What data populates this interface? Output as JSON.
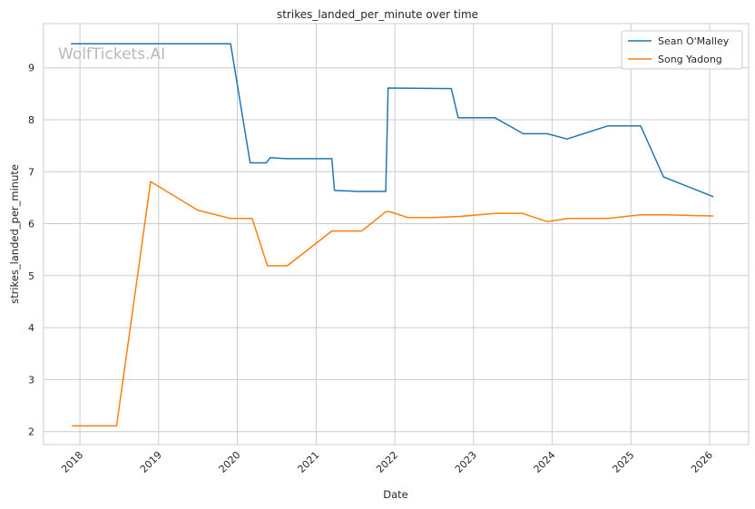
{
  "watermark": "WolfTickets.AI",
  "chart_data": {
    "type": "line",
    "title": "strikes_landed_per_minute over time",
    "xlabel": "Date",
    "ylabel": "strikes_landed_per_minute",
    "x_axis_type": "date",
    "xlim": [
      "2017-07-16",
      "2026-07-01"
    ],
    "ylim": [
      1.75,
      9.85
    ],
    "x_ticks": [
      "2018-01-01",
      "2019-01-01",
      "2020-01-01",
      "2021-01-01",
      "2022-01-01",
      "2023-01-01",
      "2024-01-01",
      "2025-01-01",
      "2026-01-01"
    ],
    "x_tick_labels": [
      "2018",
      "2019",
      "2020",
      "2021",
      "2022",
      "2023",
      "2024",
      "2025",
      "2026"
    ],
    "y_ticks": [
      2,
      3,
      4,
      5,
      6,
      7,
      8,
      9
    ],
    "grid": true,
    "legend_position": "top-right",
    "series": [
      {
        "name": "Sean O'Malley",
        "color": "#1f77b4",
        "points": [
          {
            "x": "2017-11-20",
            "y": 9.46
          },
          {
            "x": "2019-12-01",
            "y": 9.46
          },
          {
            "x": "2020-03-01",
            "y": 7.17
          },
          {
            "x": "2020-05-15",
            "y": 7.17
          },
          {
            "x": "2020-06-01",
            "y": 7.27
          },
          {
            "x": "2020-08-15",
            "y": 7.25
          },
          {
            "x": "2021-03-15",
            "y": 7.25
          },
          {
            "x": "2021-03-27",
            "y": 6.64
          },
          {
            "x": "2021-07-15",
            "y": 6.62
          },
          {
            "x": "2021-11-20",
            "y": 6.62
          },
          {
            "x": "2021-12-01",
            "y": 8.61
          },
          {
            "x": "2022-09-20",
            "y": 8.6
          },
          {
            "x": "2022-10-22",
            "y": 8.04
          },
          {
            "x": "2023-04-10",
            "y": 8.04
          },
          {
            "x": "2023-08-20",
            "y": 7.73
          },
          {
            "x": "2023-12-10",
            "y": 7.73
          },
          {
            "x": "2024-03-10",
            "y": 7.63
          },
          {
            "x": "2024-09-15",
            "y": 7.88
          },
          {
            "x": "2025-02-15",
            "y": 7.88
          },
          {
            "x": "2025-06-01",
            "y": 6.9
          },
          {
            "x": "2026-01-18",
            "y": 6.52
          }
        ]
      },
      {
        "name": "Song Yadong",
        "color": "#ff7f0e",
        "points": [
          {
            "x": "2017-11-25",
            "y": 2.11
          },
          {
            "x": "2018-06-20",
            "y": 2.11
          },
          {
            "x": "2018-11-25",
            "y": 6.81
          },
          {
            "x": "2019-07-01",
            "y": 6.26
          },
          {
            "x": "2019-12-01",
            "y": 6.1
          },
          {
            "x": "2020-03-10",
            "y": 6.1
          },
          {
            "x": "2020-05-20",
            "y": 5.19
          },
          {
            "x": "2020-08-20",
            "y": 5.19
          },
          {
            "x": "2021-03-15",
            "y": 5.86
          },
          {
            "x": "2021-08-01",
            "y": 5.86
          },
          {
            "x": "2021-11-20",
            "y": 6.23
          },
          {
            "x": "2021-12-10",
            "y": 6.23
          },
          {
            "x": "2022-03-01",
            "y": 6.12
          },
          {
            "x": "2022-07-01",
            "y": 6.12
          },
          {
            "x": "2022-11-01",
            "y": 6.14
          },
          {
            "x": "2023-04-15",
            "y": 6.2
          },
          {
            "x": "2023-08-15",
            "y": 6.2
          },
          {
            "x": "2023-12-10",
            "y": 6.04
          },
          {
            "x": "2024-03-15",
            "y": 6.1
          },
          {
            "x": "2024-09-15",
            "y": 6.1
          },
          {
            "x": "2025-02-15",
            "y": 6.17
          },
          {
            "x": "2025-06-01",
            "y": 6.17
          },
          {
            "x": "2026-01-18",
            "y": 6.15
          }
        ]
      }
    ]
  }
}
